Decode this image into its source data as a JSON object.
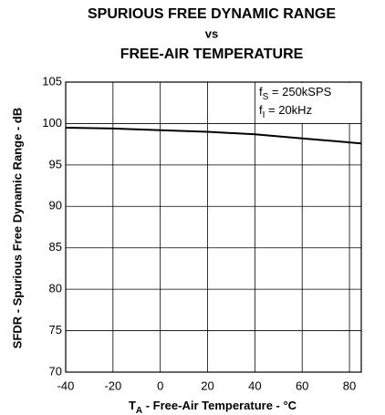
{
  "chart_data": {
    "type": "line",
    "title": [
      "SPURIOUS FREE DYNAMIC RANGE",
      "vs",
      "FREE-AIR TEMPERATURE"
    ],
    "y_label": "SFDR - Spurious Free Dynamic Range - dB",
    "x_label": {
      "main": "T",
      "sub": "A",
      "rest": " - Free-Air Temperature - °C"
    },
    "annotations": [
      {
        "main": "f",
        "sub": "S",
        "rest": " = 250kSPS"
      },
      {
        "main": "f",
        "sub": "I",
        "rest": " = 20kHz"
      }
    ],
    "x": [
      -40,
      -20,
      0,
      20,
      40,
      60,
      85
    ],
    "series": [
      {
        "color": "#000000",
        "values": [
          99.5,
          99.4,
          99.2,
          99.0,
          98.7,
          98.2,
          97.6
        ]
      }
    ],
    "xlim": [
      -40,
      85
    ],
    "xticks": [
      -40,
      -20,
      0,
      20,
      40,
      60,
      80
    ],
    "ylim": [
      70,
      105
    ],
    "yticks": [
      70,
      75,
      80,
      85,
      90,
      95,
      100,
      105
    ],
    "grid": true
  }
}
